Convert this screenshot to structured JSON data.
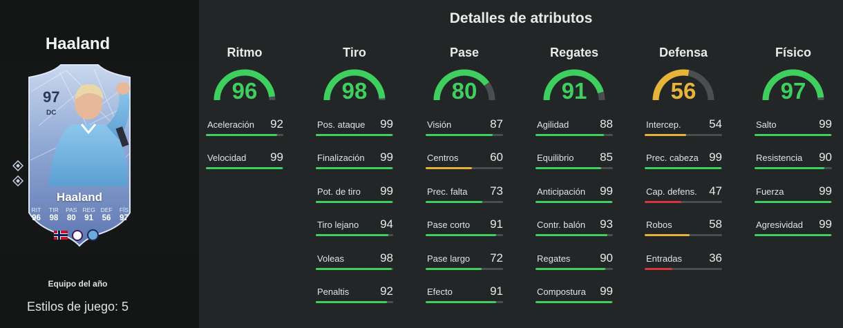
{
  "player": {
    "name": "Haaland",
    "team_label": "Equipo del año",
    "playstyles": "Estilos de juego: 5"
  },
  "card": {
    "rating": "97",
    "position": "DC",
    "name": "Haaland",
    "stats": [
      {
        "label": "RIT",
        "value": "96"
      },
      {
        "label": "TIR",
        "value": "98"
      },
      {
        "label": "PAS",
        "value": "80"
      },
      {
        "label": "REG",
        "value": "91"
      },
      {
        "label": "DEF",
        "value": "56"
      },
      {
        "label": "FÍS",
        "value": "97"
      }
    ],
    "nation_icon": "norway-flag-icon",
    "league_icon": "premier-league-icon",
    "club_icon": "manchester-city-icon"
  },
  "colors": {
    "high": "#3ecf5e",
    "medium": "#e7b43a",
    "low": "#d9363e",
    "track": "#4a4e4e"
  },
  "section_title": "Detalles de atributos",
  "categories": [
    {
      "name": "Ritmo",
      "value": "96",
      "attributes": [
        {
          "name": "Aceleración",
          "value": "92"
        },
        {
          "name": "Velocidad",
          "value": "99"
        }
      ]
    },
    {
      "name": "Tiro",
      "value": "98",
      "attributes": [
        {
          "name": "Pos. ataque",
          "value": "99"
        },
        {
          "name": "Finalización",
          "value": "99"
        },
        {
          "name": "Pot. de tiro",
          "value": "99"
        },
        {
          "name": "Tiro lejano",
          "value": "94"
        },
        {
          "name": "Voleas",
          "value": "98"
        },
        {
          "name": "Penaltis",
          "value": "92"
        }
      ]
    },
    {
      "name": "Pase",
      "value": "80",
      "attributes": [
        {
          "name": "Visión",
          "value": "87"
        },
        {
          "name": "Centros",
          "value": "60"
        },
        {
          "name": "Prec. falta",
          "value": "73"
        },
        {
          "name": "Pase corto",
          "value": "91"
        },
        {
          "name": "Pase largo",
          "value": "72"
        },
        {
          "name": "Efecto",
          "value": "91"
        }
      ]
    },
    {
      "name": "Regates",
      "value": "91",
      "attributes": [
        {
          "name": "Agilidad",
          "value": "88"
        },
        {
          "name": "Equilibrio",
          "value": "85"
        },
        {
          "name": "Anticipación",
          "value": "99"
        },
        {
          "name": "Contr. balón",
          "value": "93"
        },
        {
          "name": "Regates",
          "value": "90"
        },
        {
          "name": "Compostura",
          "value": "99"
        }
      ]
    },
    {
      "name": "Defensa",
      "value": "56",
      "attributes": [
        {
          "name": "Intercep.",
          "value": "54"
        },
        {
          "name": "Prec. cabeza",
          "value": "99"
        },
        {
          "name": "Cap. defens.",
          "value": "47"
        },
        {
          "name": "Robos",
          "value": "58"
        },
        {
          "name": "Entradas",
          "value": "36"
        }
      ]
    },
    {
      "name": "Físico",
      "value": "97",
      "attributes": [
        {
          "name": "Salto",
          "value": "99"
        },
        {
          "name": "Resistencia",
          "value": "90"
        },
        {
          "name": "Fuerza",
          "value": "99"
        },
        {
          "name": "Agresividad",
          "value": "99"
        }
      ]
    }
  ]
}
